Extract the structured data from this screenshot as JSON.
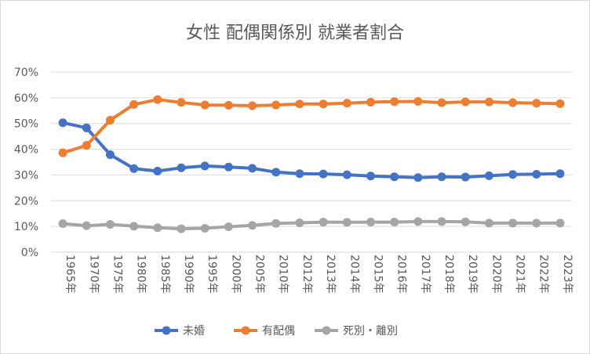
{
  "chart_data": {
    "type": "line",
    "title": "女性 配偶関係別 就業者割合",
    "xlabel": "",
    "ylabel": "",
    "ylim": [
      0,
      0.7
    ],
    "yticks": [
      0,
      0.1,
      0.2,
      0.3,
      0.4,
      0.5,
      0.6,
      0.7
    ],
    "ytick_labels": [
      "0%",
      "10%",
      "20%",
      "30%",
      "40%",
      "50%",
      "60%",
      "70%"
    ],
    "grid": true,
    "legend_position": "bottom",
    "categories": [
      "1965年",
      "1970年",
      "1975年",
      "1980年",
      "1985年",
      "1990年",
      "1995年",
      "2000年",
      "2005年",
      "2010年",
      "2012年",
      "2013年",
      "2014年",
      "2015年",
      "2016年",
      "2017年",
      "2018年",
      "2019年",
      "2020年",
      "2021年",
      "2022年",
      "2023年"
    ],
    "series": [
      {
        "name": "未婚",
        "color": "#4472c4",
        "values": [
          0.503,
          0.483,
          0.379,
          0.325,
          0.315,
          0.328,
          0.335,
          0.331,
          0.326,
          0.311,
          0.305,
          0.304,
          0.301,
          0.296,
          0.293,
          0.29,
          0.293,
          0.292,
          0.297,
          0.302,
          0.303,
          0.305
        ]
      },
      {
        "name": "有配偶",
        "color": "#ed7d31",
        "values": [
          0.386,
          0.415,
          0.513,
          0.574,
          0.593,
          0.582,
          0.572,
          0.571,
          0.569,
          0.572,
          0.576,
          0.576,
          0.579,
          0.583,
          0.585,
          0.586,
          0.581,
          0.584,
          0.584,
          0.581,
          0.579,
          0.577
        ]
      },
      {
        "name": "死別・離別",
        "color": "#a5a5a5",
        "values": [
          0.111,
          0.103,
          0.108,
          0.101,
          0.095,
          0.091,
          0.093,
          0.099,
          0.104,
          0.112,
          0.114,
          0.117,
          0.116,
          0.117,
          0.117,
          0.119,
          0.119,
          0.118,
          0.113,
          0.113,
          0.113,
          0.113
        ]
      }
    ],
    "gridline_color": "#d9d9d9",
    "axis_color": "#d9d9d9"
  }
}
